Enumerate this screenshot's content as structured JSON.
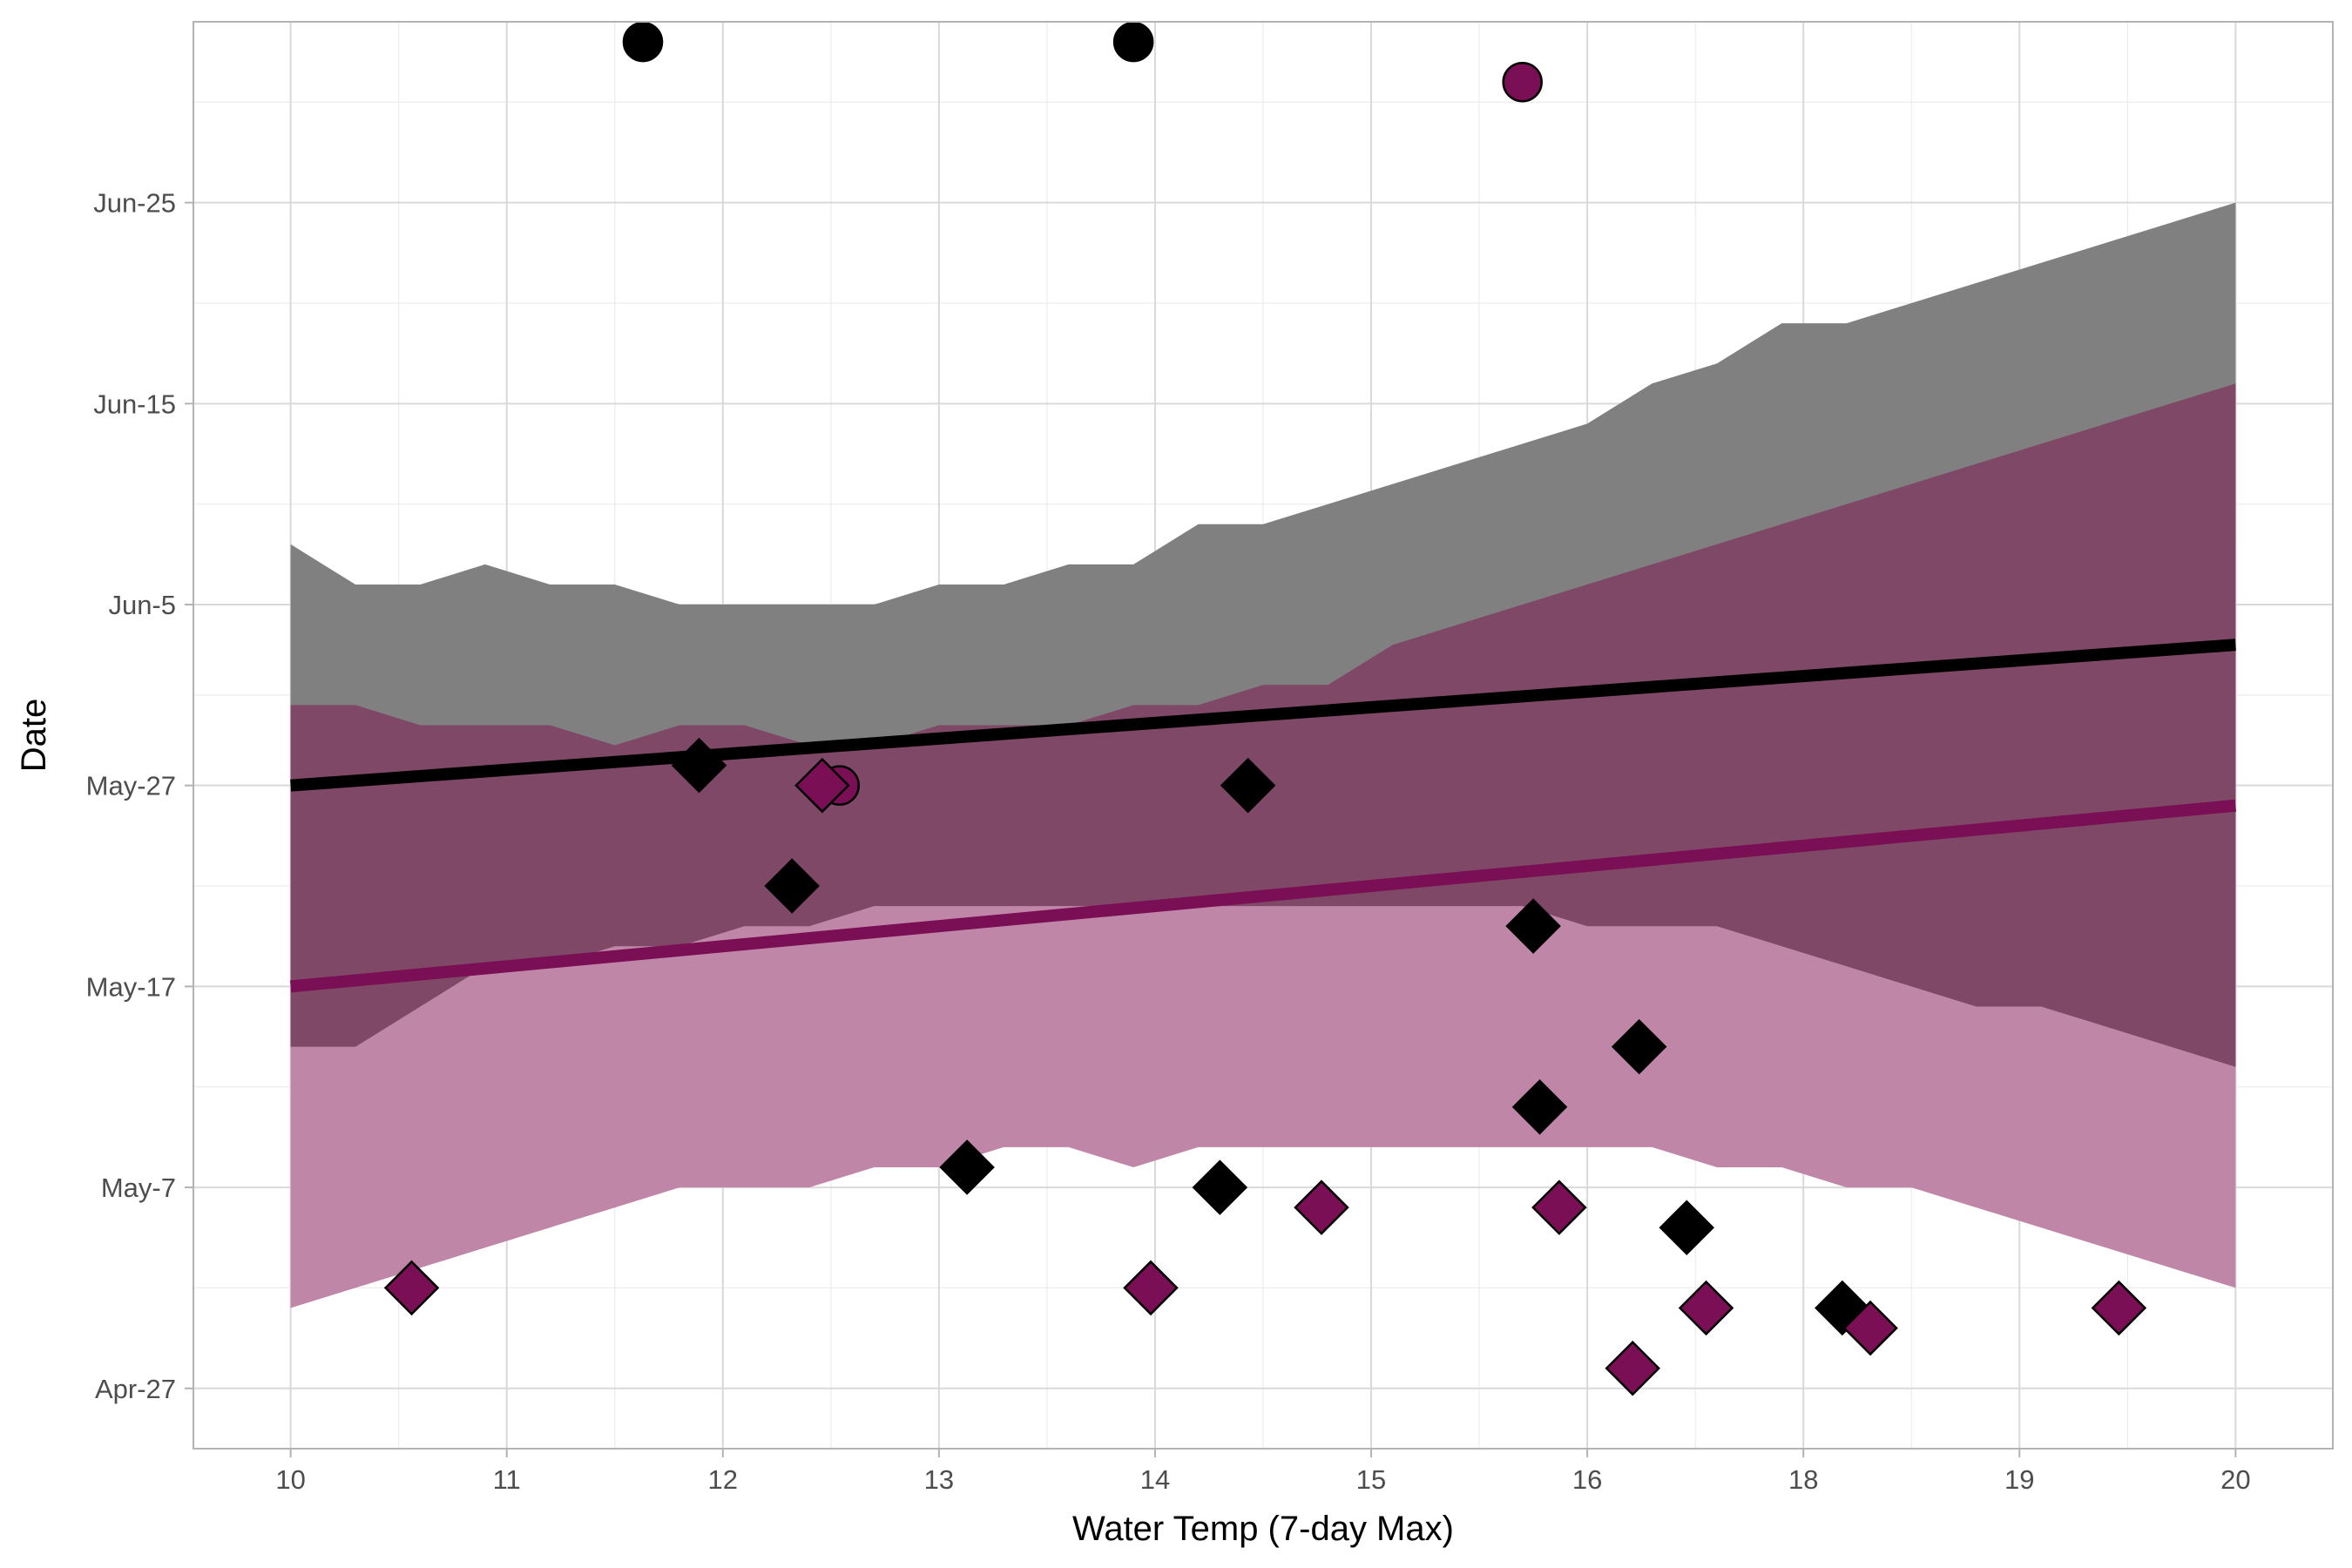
{
  "chart_data": {
    "type": "scatter",
    "xlabel": "Water Temp (7-day Max)",
    "ylabel": "Date",
    "x_tick_labels": [
      "10",
      "11",
      "12",
      "13",
      "14",
      "15",
      "16",
      "18",
      "19",
      "20"
    ],
    "y_tick_labels": [
      "Apr-27",
      "May-7",
      "May-17",
      "May-27",
      "Jun-5",
      "Jun-15",
      "Jun-25"
    ],
    "x_tick_positions": [
      0,
      1,
      2,
      3,
      4,
      5,
      6,
      7,
      8,
      9
    ],
    "y_tick_dates": [
      "2000-04-27",
      "2000-05-07",
      "2000-05-17",
      "2000-05-27",
      "2000-06-05",
      "2000-06-15",
      "2000-06-25"
    ],
    "xlim": [
      -0.45,
      9.45
    ],
    "ylim": [
      "2000-04-24",
      "2000-07-04"
    ],
    "grid": true,
    "colors": {
      "black": "#000000",
      "magenta": "#7a0f55",
      "gray_band": "#808080",
      "dark_band": "#7e4866",
      "light_band": "#bf86a8",
      "panel_border": "#b3b3b3",
      "grid_major": "#d9d9d9",
      "grid_minor": "#ececec"
    },
    "bands": [
      {
        "color": "#808080",
        "x": [
          0.0,
          0.3,
          0.6,
          0.9,
          1.2,
          1.5,
          1.8,
          2.1,
          2.4,
          2.7,
          3.0,
          3.3,
          3.6,
          3.9,
          4.2,
          4.5,
          4.8,
          5.1,
          5.4,
          5.7,
          6.0,
          6.3,
          6.6,
          6.9,
          7.2,
          7.5,
          7.8,
          8.1,
          8.4,
          8.7,
          9.0
        ],
        "upper": [
          "2000-06-08",
          "2000-06-06",
          "2000-06-06",
          "2000-06-07",
          "2000-06-06",
          "2000-06-06",
          "2000-06-05",
          "2000-06-05",
          "2000-06-05",
          "2000-06-05",
          "2000-06-06",
          "2000-06-06",
          "2000-06-07",
          "2000-06-07",
          "2000-06-09",
          "2000-06-09",
          "2000-06-10",
          "2000-06-11",
          "2000-06-12",
          "2000-06-13",
          "2000-06-14",
          "2000-06-16",
          "2000-06-17",
          "2000-06-19",
          "2000-06-19",
          "2000-06-20",
          "2000-06-21",
          "2000-06-22",
          "2000-06-23",
          "2000-06-24",
          "2000-06-25"
        ],
        "lower": [
          "2000-05-30",
          "2000-05-29",
          "2000-05-29",
          "2000-05-29",
          "2000-05-29",
          "2000-05-28",
          "2000-05-29",
          "2000-05-29",
          "2000-05-28",
          "2000-05-28",
          "2000-05-29",
          "2000-05-29",
          "2000-05-29",
          "2000-05-29",
          "2000-05-30",
          "2000-05-30",
          "2000-05-31",
          "2000-05-31",
          "2000-06-01",
          "2000-06-02",
          "2000-06-03",
          "2000-06-04",
          "2000-06-05",
          "2000-06-05",
          "2000-06-06",
          "2000-06-06",
          "2000-06-06",
          "2000-06-07",
          "2000-06-07",
          "2000-06-07",
          "2000-06-08"
        ]
      },
      {
        "color": "#bf86a8",
        "x": [
          0.0,
          0.3,
          0.6,
          0.9,
          1.2,
          1.5,
          1.8,
          2.1,
          2.4,
          2.7,
          3.0,
          3.3,
          3.6,
          3.9,
          4.2,
          4.5,
          4.8,
          5.1,
          5.4,
          5.7,
          6.0,
          6.3,
          6.6,
          6.9,
          7.2,
          7.5,
          7.8,
          8.1,
          8.4,
          8.7,
          9.0
        ],
        "upper": [
          "2000-05-30",
          "2000-05-29",
          "2000-05-29",
          "2000-05-29",
          "2000-05-29",
          "2000-05-28",
          "2000-05-29",
          "2000-05-29",
          "2000-05-28",
          "2000-05-28",
          "2000-05-29",
          "2000-05-29",
          "2000-05-29",
          "2000-05-29",
          "2000-05-30",
          "2000-05-30",
          "2000-05-31",
          "2000-05-31",
          "2000-06-01",
          "2000-06-02",
          "2000-06-03",
          "2000-06-04",
          "2000-06-05",
          "2000-06-05",
          "2000-06-06",
          "2000-06-06",
          "2000-06-06",
          "2000-06-07",
          "2000-06-07",
          "2000-06-07",
          "2000-06-08"
        ],
        "lower": [
          "2000-05-01",
          "2000-05-02",
          "2000-05-03",
          "2000-05-04",
          "2000-05-05",
          "2000-05-06",
          "2000-05-07",
          "2000-05-07",
          "2000-05-07",
          "2000-05-08",
          "2000-05-08",
          "2000-05-09",
          "2000-05-09",
          "2000-05-08",
          "2000-05-09",
          "2000-05-09",
          "2000-05-09",
          "2000-05-09",
          "2000-05-09",
          "2000-05-09",
          "2000-05-09",
          "2000-05-09",
          "2000-05-08",
          "2000-05-08",
          "2000-05-07",
          "2000-05-07",
          "2000-05-06",
          "2000-05-05",
          "2000-05-04",
          "2000-05-03",
          "2000-05-02"
        ]
      },
      {
        "color": "#7e4866",
        "x": [
          0.0,
          0.3,
          0.6,
          0.9,
          1.2,
          1.5,
          1.8,
          2.1,
          2.4,
          2.7,
          3.0,
          3.3,
          3.6,
          3.9,
          4.2,
          4.5,
          4.8,
          5.1,
          5.4,
          5.7,
          6.0,
          6.3,
          6.6,
          6.9,
          7.2,
          7.5,
          7.8,
          8.1,
          8.4,
          8.7,
          9.0
        ],
        "upper": [
          "2000-05-30",
          "2000-05-29",
          "2000-05-29",
          "2000-05-29",
          "2000-05-29",
          "2000-05-28",
          "2000-05-29",
          "2000-05-29",
          "2000-05-28",
          "2000-05-28",
          "2000-05-29",
          "2000-05-29",
          "2000-05-29",
          "2000-05-29",
          "2000-05-30",
          "2000-05-30",
          "2000-05-31",
          "2000-05-31",
          "2000-06-01",
          "2000-06-02",
          "2000-06-03",
          "2000-06-04",
          "2000-06-05",
          "2000-06-05",
          "2000-06-06",
          "2000-06-06",
          "2000-06-06",
          "2000-06-07",
          "2000-06-07",
          "2000-06-07",
          "2000-06-08"
        ],
        "lower": [
          "2000-05-14",
          "2000-05-14",
          "2000-05-16",
          "2000-05-18",
          "2000-05-18",
          "2000-05-19",
          "2000-05-19",
          "2000-05-20",
          "2000-05-20",
          "2000-05-21",
          "2000-05-21",
          "2000-05-21",
          "2000-05-21",
          "2000-05-21",
          "2000-05-21",
          "2000-05-21",
          "2000-05-21",
          "2000-05-21",
          "2000-05-21",
          "2000-05-21",
          "2000-05-20",
          "2000-05-20",
          "2000-05-20",
          "2000-05-19",
          "2000-05-18",
          "2000-05-17",
          "2000-05-16",
          "2000-05-16",
          "2000-05-15",
          "2000-05-14",
          "2000-05-13"
        ]
      }
    ],
    "band_upper_fixes": {
      "dark_band_upper": [
        "2000-05-31",
        "2000-05-31",
        "2000-05-30",
        "2000-05-30",
        "2000-05-30",
        "2000-05-29",
        "2000-05-30",
        "2000-05-30",
        "2000-05-29",
        "2000-05-29",
        "2000-05-30",
        "2000-05-30",
        "2000-05-30",
        "2000-05-31",
        "2000-05-31",
        "2000-06-01",
        "2000-06-01",
        "2000-06-03",
        "2000-06-04",
        "2000-06-05",
        "2000-06-06",
        "2000-06-07",
        "2000-06-08",
        "2000-06-09",
        "2000-06-10",
        "2000-06-11",
        "2000-06-12",
        "2000-06-13",
        "2000-06-14",
        "2000-06-15",
        "2000-06-16"
      ]
    },
    "series": [
      {
        "color": "#000000",
        "line": {
          "x": [
            0.0,
            9.0
          ],
          "y": [
            "2000-05-27",
            "2000-06-03"
          ]
        }
      },
      {
        "color": "#7a0f55",
        "line": {
          "x": [
            0.0,
            9.0
          ],
          "y": [
            "2000-05-17",
            "2000-05-26"
          ]
        }
      }
    ],
    "points": [
      {
        "x": 1.63,
        "y": "2000-07-03",
        "shape": "circle",
        "color": "#000000"
      },
      {
        "x": 3.9,
        "y": "2000-07-03",
        "shape": "circle",
        "color": "#000000"
      },
      {
        "x": 5.7,
        "y": "2000-07-01",
        "shape": "circle",
        "color": "#7a0f55"
      },
      {
        "x": 2.54,
        "y": "2000-05-27",
        "shape": "circle",
        "color": "#7a0f55"
      },
      {
        "x": 1.89,
        "y": "2000-05-28",
        "shape": "diamond",
        "color": "#000000"
      },
      {
        "x": 2.46,
        "y": "2000-05-27",
        "shape": "diamond",
        "color": "#7a0f55"
      },
      {
        "x": 2.32,
        "y": "2000-05-22",
        "shape": "diamond",
        "color": "#000000"
      },
      {
        "x": 4.43,
        "y": "2000-05-27",
        "shape": "diamond",
        "color": "#000000"
      },
      {
        "x": 5.75,
        "y": "2000-05-20",
        "shape": "diamond",
        "color": "#000000"
      },
      {
        "x": 6.24,
        "y": "2000-05-14",
        "shape": "diamond",
        "color": "#000000"
      },
      {
        "x": 5.78,
        "y": "2000-05-11",
        "shape": "diamond",
        "color": "#000000"
      },
      {
        "x": 3.13,
        "y": "2000-05-08",
        "shape": "diamond",
        "color": "#000000"
      },
      {
        "x": 4.3,
        "y": "2000-05-07",
        "shape": "diamond",
        "color": "#000000"
      },
      {
        "x": 4.77,
        "y": "2000-05-06",
        "shape": "diamond",
        "color": "#7a0f55"
      },
      {
        "x": 5.87,
        "y": "2000-05-06",
        "shape": "diamond",
        "color": "#7a0f55"
      },
      {
        "x": 6.46,
        "y": "2000-05-05",
        "shape": "diamond",
        "color": "#000000"
      },
      {
        "x": 0.56,
        "y": "2000-05-02",
        "shape": "diamond",
        "color": "#7a0f55"
      },
      {
        "x": 3.98,
        "y": "2000-05-02",
        "shape": "diamond",
        "color": "#7a0f55"
      },
      {
        "x": 6.55,
        "y": "2000-05-01",
        "shape": "diamond",
        "color": "#7a0f55"
      },
      {
        "x": 7.18,
        "y": "2000-05-01",
        "shape": "diamond",
        "color": "#000000"
      },
      {
        "x": 7.31,
        "y": "2000-04-30",
        "shape": "diamond",
        "color": "#7a0f55"
      },
      {
        "x": 8.46,
        "y": "2000-05-01",
        "shape": "diamond",
        "color": "#7a0f55"
      },
      {
        "x": 6.21,
        "y": "2000-04-28",
        "shape": "diamond",
        "color": "#7a0f55"
      }
    ]
  }
}
